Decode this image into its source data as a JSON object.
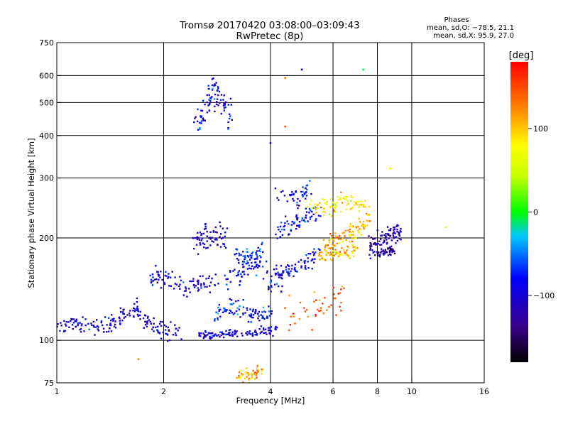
{
  "chart_data": {
    "type": "scatter",
    "title": "Tromsø 20170420 03:08:00–03:09:43",
    "subtitle": "RwPretec (8p)",
    "xlabel": "Frequency [MHz]",
    "ylabel": "Stationary phase Virtual Height [km]",
    "x_scale": "log",
    "y_scale": "log",
    "xlim": [
      1,
      16
    ],
    "ylim": [
      75,
      750
    ],
    "x_ticks": [
      1,
      2,
      4,
      6,
      8,
      10,
      16
    ],
    "x_tick_labels": [
      "1",
      "2",
      "4",
      "6",
      "8",
      "10",
      "16"
    ],
    "y_ticks": [
      75,
      100,
      200,
      300,
      400,
      500,
      600,
      750
    ],
    "y_tick_labels": [
      "75",
      "100",
      "200",
      "300",
      "400",
      "500",
      "600",
      "750"
    ],
    "x_grid": [
      2,
      4,
      6,
      8,
      10
    ],
    "y_grid": [
      100,
      200,
      300,
      400,
      500,
      600
    ],
    "grid": true,
    "stats": {
      "title": "Phases",
      "line_o": "mean, sd,O: −78.5, 21.1",
      "line_x": "mean, sd,X:  95.9, 27.0"
    },
    "colorbar": {
      "label": "[deg]",
      "range": [
        -180,
        180
      ],
      "ticks": [
        100,
        0,
        -100
      ],
      "tick_labels": [
        "100",
        "0",
        "−100"
      ]
    },
    "series": [
      {
        "f": [
          1,
          1.12,
          1.25,
          1.4,
          1.55
        ],
        "h": [
          110,
          112,
          109,
          110,
          118
        ],
        "phase": -100,
        "spread": [
          0.03,
          0.025
        ]
      },
      {
        "f": [
          1.5,
          1.65,
          1.8,
          2.0,
          2.2
        ],
        "h": [
          118,
          125,
          113,
          106,
          108
        ],
        "phase": -105,
        "spread": [
          0.03,
          0.03
        ]
      },
      {
        "f": [
          1.8,
          2.0,
          2.3,
          2.5,
          2.8
        ],
        "h": [
          150,
          155,
          142,
          145,
          150
        ],
        "phase": -100,
        "spread": [
          0.025,
          0.035
        ]
      },
      {
        "f": [
          2.4,
          2.6,
          2.8,
          3.0
        ],
        "h": [
          195,
          200,
          205,
          198
        ],
        "phase": -110,
        "spread": [
          0.02,
          0.04
        ]
      },
      {
        "f": [
          2.45,
          2.6,
          2.75,
          2.9,
          3.1
        ],
        "h": [
          430,
          480,
          560,
          500,
          470
        ],
        "phase": -95,
        "spread": [
          0.02,
          0.06
        ]
      },
      {
        "f": [
          2.5,
          2.7,
          3.0,
          3.4,
          3.8,
          4.2
        ],
        "h": [
          104,
          103,
          105,
          104,
          106,
          108
        ],
        "phase": -100,
        "spread": [
          0.02,
          0.015
        ]
      },
      {
        "f": [
          2.8,
          3.1,
          3.4,
          3.7,
          4.0
        ],
        "h": [
          120,
          125,
          122,
          118,
          120
        ],
        "phase": -80,
        "spread": [
          0.02,
          0.03
        ]
      },
      {
        "f": [
          3.0,
          3.3,
          3.6,
          4.0,
          4.4
        ],
        "h": [
          150,
          160,
          170,
          150,
          155
        ],
        "phase": -90,
        "spread": [
          0.025,
          0.04
        ]
      },
      {
        "f": [
          3.2,
          3.5,
          3.8
        ],
        "h": [
          180,
          175,
          185
        ],
        "phase": -70,
        "spread": [
          0.02,
          0.03
        ]
      },
      {
        "f": [
          4.0,
          4.5,
          5.0,
          5.5
        ],
        "h": [
          150,
          160,
          170,
          180
        ],
        "phase": -95,
        "spread": [
          0.02,
          0.025
        ]
      },
      {
        "f": [
          4.2,
          4.6,
          5.0,
          5.5
        ],
        "h": [
          210,
          220,
          230,
          240
        ],
        "phase": -85,
        "spread": [
          0.02,
          0.03
        ]
      },
      {
        "f": [
          4.2,
          4.8,
          5.2
        ],
        "h": [
          270,
          260,
          280
        ],
        "phase": -90,
        "spread": [
          0.02,
          0.03
        ]
      },
      {
        "f": [
          5.6,
          6.0,
          6.5,
          7.0,
          7.5
        ],
        "h": [
          190,
          195,
          200,
          210,
          220
        ],
        "phase": 110,
        "spread": [
          0.025,
          0.03
        ]
      },
      {
        "f": [
          5.5,
          6.0,
          6.5,
          7.0
        ],
        "h": [
          175,
          180,
          182,
          185
        ],
        "phase": 100,
        "spread": [
          0.02,
          0.02
        ]
      },
      {
        "f": [
          5.2,
          5.8,
          6.3,
          7.0,
          7.5
        ],
        "h": [
          250,
          240,
          255,
          260,
          235
        ],
        "phase": 80,
        "spread": [
          0.03,
          0.03
        ]
      },
      {
        "f": [
          7.5,
          8.0,
          8.5,
          9.0,
          9.3
        ],
        "h": [
          185,
          195,
          200,
          205,
          210
        ],
        "phase": -120,
        "spread": [
          0.02,
          0.03
        ]
      },
      {
        "f": [
          8.0,
          8.5,
          9.0
        ],
        "h": [
          180,
          182,
          185
        ],
        "phase": -130,
        "spread": [
          0.02,
          0.015
        ]
      },
      {
        "f": [
          4.5,
          5.5,
          6.5
        ],
        "h": [
          120,
          125,
          135
        ],
        "phase": 140,
        "spread": [
          0.05,
          0.06
        ]
      },
      {
        "f": [
          3.2,
          3.5,
          3.8
        ],
        "h": [
          80,
          78,
          82
        ],
        "phase": 110,
        "spread": [
          0.02,
          0.02
        ]
      }
    ],
    "isolated_points": [
      {
        "f": 4.9,
        "h": 625,
        "phase": -110
      },
      {
        "f": 7.3,
        "h": 625,
        "phase": -10
      },
      {
        "f": 4.4,
        "h": 590,
        "phase": 130
      },
      {
        "f": 4.0,
        "h": 380,
        "phase": -100
      },
      {
        "f": 8.7,
        "h": 320,
        "phase": 60
      },
      {
        "f": 12.5,
        "h": 215,
        "phase": 90
      },
      {
        "f": 1.7,
        "h": 88,
        "phase": 120
      },
      {
        "f": 4.4,
        "h": 425,
        "phase": 150
      }
    ]
  }
}
